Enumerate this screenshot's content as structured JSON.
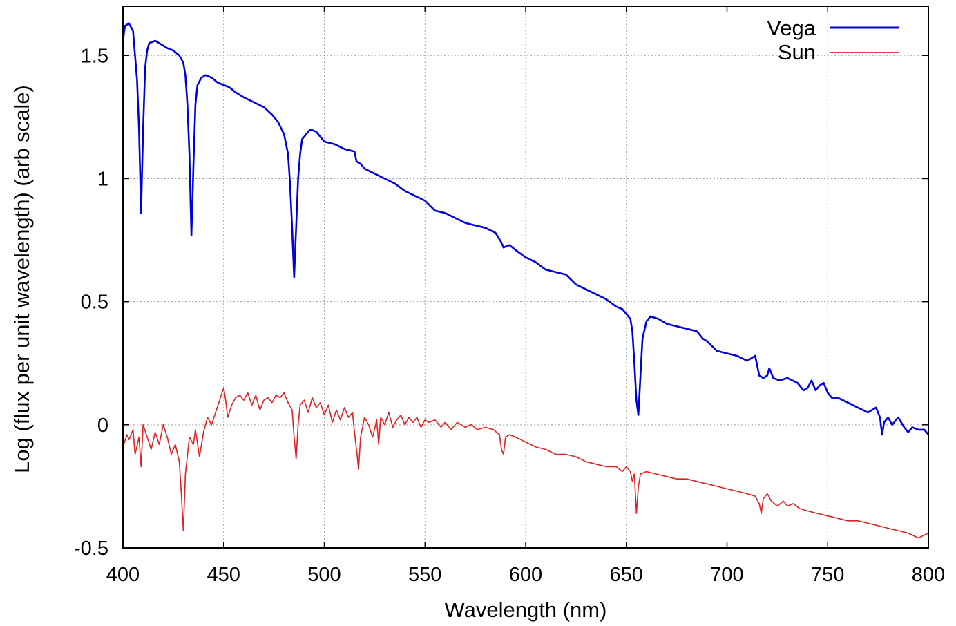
{
  "chart_data": {
    "type": "line",
    "title": "",
    "xlabel": "Wavelength (nm)",
    "ylabel": "Log (flux per unit wavelength) (arb scale)",
    "xlim": [
      400,
      800
    ],
    "ylim": [
      -0.5,
      1.7
    ],
    "xticks": [
      400,
      450,
      500,
      550,
      600,
      650,
      700,
      750,
      800
    ],
    "yticks": [
      -0.5,
      0,
      0.5,
      1,
      1.5
    ],
    "ytick_labels": [
      "-0.5",
      "0",
      "0.5",
      "1",
      "1.5"
    ],
    "grid": true,
    "legend_position": "top-right",
    "series": [
      {
        "name": "Vega",
        "color": "#0000dd",
        "points": [
          [
            400,
            1.56
          ],
          [
            401,
            1.62
          ],
          [
            403,
            1.63
          ],
          [
            405,
            1.6
          ],
          [
            406,
            1.5
          ],
          [
            407,
            1.4
          ],
          [
            408,
            1.2
          ],
          [
            409,
            0.86
          ],
          [
            410,
            1.2
          ],
          [
            411,
            1.45
          ],
          [
            412,
            1.52
          ],
          [
            413,
            1.55
          ],
          [
            416,
            1.56
          ],
          [
            418,
            1.55
          ],
          [
            420,
            1.54
          ],
          [
            422,
            1.53
          ],
          [
            425,
            1.52
          ],
          [
            428,
            1.5
          ],
          [
            430,
            1.47
          ],
          [
            431,
            1.42
          ],
          [
            432,
            1.3
          ],
          [
            433,
            1.1
          ],
          [
            434,
            0.77
          ],
          [
            435,
            1.05
          ],
          [
            436,
            1.3
          ],
          [
            437,
            1.38
          ],
          [
            439,
            1.41
          ],
          [
            441,
            1.42
          ],
          [
            444,
            1.41
          ],
          [
            447,
            1.39
          ],
          [
            450,
            1.38
          ],
          [
            453,
            1.37
          ],
          [
            456,
            1.35
          ],
          [
            460,
            1.33
          ],
          [
            465,
            1.31
          ],
          [
            470,
            1.29
          ],
          [
            474,
            1.26
          ],
          [
            477,
            1.23
          ],
          [
            480,
            1.18
          ],
          [
            482,
            1.1
          ],
          [
            483,
            0.98
          ],
          [
            484,
            0.8
          ],
          [
            485,
            0.6
          ],
          [
            486,
            0.8
          ],
          [
            487,
            1.0
          ],
          [
            488,
            1.1
          ],
          [
            489,
            1.16
          ],
          [
            491,
            1.18
          ],
          [
            493,
            1.2
          ],
          [
            496,
            1.19
          ],
          [
            500,
            1.15
          ],
          [
            505,
            1.14
          ],
          [
            510,
            1.12
          ],
          [
            515,
            1.11
          ],
          [
            516,
            1.07
          ],
          [
            518,
            1.06
          ],
          [
            520,
            1.04
          ],
          [
            525,
            1.02
          ],
          [
            530,
            1.0
          ],
          [
            535,
            0.98
          ],
          [
            540,
            0.95
          ],
          [
            545,
            0.93
          ],
          [
            550,
            0.91
          ],
          [
            555,
            0.87
          ],
          [
            560,
            0.86
          ],
          [
            565,
            0.84
          ],
          [
            570,
            0.82
          ],
          [
            575,
            0.81
          ],
          [
            580,
            0.8
          ],
          [
            585,
            0.78
          ],
          [
            588,
            0.74
          ],
          [
            589,
            0.72
          ],
          [
            592,
            0.73
          ],
          [
            595,
            0.71
          ],
          [
            600,
            0.68
          ],
          [
            605,
            0.66
          ],
          [
            610,
            0.63
          ],
          [
            615,
            0.62
          ],
          [
            620,
            0.61
          ],
          [
            625,
            0.57
          ],
          [
            630,
            0.55
          ],
          [
            635,
            0.53
          ],
          [
            640,
            0.51
          ],
          [
            645,
            0.48
          ],
          [
            648,
            0.47
          ],
          [
            650,
            0.45
          ],
          [
            652,
            0.43
          ],
          [
            653,
            0.38
          ],
          [
            654,
            0.25
          ],
          [
            655,
            0.1
          ],
          [
            656,
            0.04
          ],
          [
            657,
            0.2
          ],
          [
            658,
            0.35
          ],
          [
            660,
            0.42
          ],
          [
            662,
            0.44
          ],
          [
            666,
            0.43
          ],
          [
            670,
            0.41
          ],
          [
            675,
            0.4
          ],
          [
            680,
            0.39
          ],
          [
            685,
            0.38
          ],
          [
            688,
            0.35
          ],
          [
            690,
            0.34
          ],
          [
            695,
            0.3
          ],
          [
            700,
            0.29
          ],
          [
            705,
            0.28
          ],
          [
            710,
            0.26
          ],
          [
            714,
            0.28
          ],
          [
            716,
            0.2
          ],
          [
            718,
            0.19
          ],
          [
            720,
            0.2
          ],
          [
            721,
            0.23
          ],
          [
            723,
            0.19
          ],
          [
            726,
            0.18
          ],
          [
            730,
            0.19
          ],
          [
            735,
            0.17
          ],
          [
            738,
            0.14
          ],
          [
            740,
            0.15
          ],
          [
            742,
            0.18
          ],
          [
            744,
            0.14
          ],
          [
            746,
            0.16
          ],
          [
            748,
            0.17
          ],
          [
            750,
            0.13
          ],
          [
            752,
            0.11
          ],
          [
            755,
            0.11
          ],
          [
            760,
            0.09
          ],
          [
            765,
            0.07
          ],
          [
            770,
            0.05
          ],
          [
            774,
            0.07
          ],
          [
            776,
            0.03
          ],
          [
            777,
            -0.04
          ],
          [
            778,
            0.01
          ],
          [
            780,
            0.03
          ],
          [
            782,
            0.0
          ],
          [
            785,
            0.03
          ],
          [
            788,
            -0.01
          ],
          [
            790,
            -0.03
          ],
          [
            792,
            -0.01
          ],
          [
            795,
            -0.02
          ],
          [
            798,
            -0.02
          ],
          [
            800,
            -0.04
          ]
        ]
      },
      {
        "name": "Sun",
        "color": "#dd2222",
        "points": [
          [
            400,
            -0.09
          ],
          [
            402,
            -0.04
          ],
          [
            403,
            -0.06
          ],
          [
            405,
            -0.02
          ],
          [
            406,
            -0.12
          ],
          [
            408,
            -0.05
          ],
          [
            409,
            -0.17
          ],
          [
            410,
            0.0
          ],
          [
            412,
            -0.05
          ],
          [
            414,
            -0.1
          ],
          [
            416,
            -0.03
          ],
          [
            418,
            -0.08
          ],
          [
            420,
            0.0
          ],
          [
            422,
            -0.05
          ],
          [
            424,
            -0.12
          ],
          [
            426,
            -0.08
          ],
          [
            428,
            -0.15
          ],
          [
            429,
            -0.28
          ],
          [
            430,
            -0.43
          ],
          [
            431,
            -0.2
          ],
          [
            433,
            -0.05
          ],
          [
            435,
            -0.08
          ],
          [
            436,
            -0.02
          ],
          [
            438,
            -0.13
          ],
          [
            440,
            -0.03
          ],
          [
            442,
            0.03
          ],
          [
            444,
            0.0
          ],
          [
            446,
            0.05
          ],
          [
            448,
            0.1
          ],
          [
            450,
            0.15
          ],
          [
            451,
            0.1
          ],
          [
            452,
            0.03
          ],
          [
            454,
            0.08
          ],
          [
            456,
            0.11
          ],
          [
            458,
            0.12
          ],
          [
            460,
            0.1
          ],
          [
            462,
            0.13
          ],
          [
            464,
            0.08
          ],
          [
            466,
            0.12
          ],
          [
            468,
            0.06
          ],
          [
            470,
            0.1
          ],
          [
            472,
            0.11
          ],
          [
            474,
            0.09
          ],
          [
            476,
            0.12
          ],
          [
            478,
            0.11
          ],
          [
            480,
            0.13
          ],
          [
            482,
            0.09
          ],
          [
            484,
            0.06
          ],
          [
            485,
            -0.05
          ],
          [
            486,
            -0.14
          ],
          [
            487,
            0.0
          ],
          [
            488,
            0.08
          ],
          [
            490,
            0.1
          ],
          [
            492,
            0.05
          ],
          [
            494,
            0.11
          ],
          [
            496,
            0.07
          ],
          [
            498,
            0.09
          ],
          [
            500,
            0.04
          ],
          [
            502,
            0.08
          ],
          [
            504,
            0.01
          ],
          [
            506,
            0.06
          ],
          [
            508,
            0.02
          ],
          [
            510,
            0.07
          ],
          [
            512,
            0.03
          ],
          [
            514,
            0.05
          ],
          [
            515,
            -0.03
          ],
          [
            516,
            -0.1
          ],
          [
            517,
            -0.18
          ],
          [
            518,
            -0.05
          ],
          [
            520,
            0.03
          ],
          [
            522,
            0.0
          ],
          [
            524,
            -0.05
          ],
          [
            526,
            0.02
          ],
          [
            527,
            -0.08
          ],
          [
            528,
            0.03
          ],
          [
            530,
            0.0
          ],
          [
            532,
            0.05
          ],
          [
            534,
            -0.01
          ],
          [
            536,
            0.02
          ],
          [
            538,
            0.04
          ],
          [
            540,
            0.0
          ],
          [
            542,
            0.03
          ],
          [
            544,
            0.01
          ],
          [
            546,
            0.03
          ],
          [
            548,
            -0.01
          ],
          [
            550,
            0.02
          ],
          [
            552,
            0.01
          ],
          [
            555,
            0.02
          ],
          [
            558,
            -0.01
          ],
          [
            560,
            0.01
          ],
          [
            563,
            -0.02
          ],
          [
            566,
            0.01
          ],
          [
            570,
            -0.01
          ],
          [
            573,
            0.0
          ],
          [
            576,
            -0.02
          ],
          [
            580,
            -0.01
          ],
          [
            584,
            -0.02
          ],
          [
            587,
            -0.04
          ],
          [
            588,
            -0.1
          ],
          [
            589,
            -0.12
          ],
          [
            590,
            -0.05
          ],
          [
            592,
            -0.04
          ],
          [
            595,
            -0.05
          ],
          [
            600,
            -0.07
          ],
          [
            605,
            -0.09
          ],
          [
            610,
            -0.1
          ],
          [
            615,
            -0.12
          ],
          [
            620,
            -0.12
          ],
          [
            625,
            -0.13
          ],
          [
            630,
            -0.15
          ],
          [
            635,
            -0.16
          ],
          [
            640,
            -0.17
          ],
          [
            645,
            -0.17
          ],
          [
            648,
            -0.19
          ],
          [
            650,
            -0.17
          ],
          [
            652,
            -0.19
          ],
          [
            653,
            -0.23
          ],
          [
            654,
            -0.2
          ],
          [
            655,
            -0.36
          ],
          [
            656,
            -0.25
          ],
          [
            657,
            -0.2
          ],
          [
            660,
            -0.19
          ],
          [
            665,
            -0.2
          ],
          [
            670,
            -0.21
          ],
          [
            675,
            -0.22
          ],
          [
            680,
            -0.22
          ],
          [
            685,
            -0.23
          ],
          [
            690,
            -0.24
          ],
          [
            695,
            -0.25
          ],
          [
            700,
            -0.26
          ],
          [
            705,
            -0.27
          ],
          [
            710,
            -0.28
          ],
          [
            714,
            -0.29
          ],
          [
            716,
            -0.32
          ],
          [
            717,
            -0.36
          ],
          [
            718,
            -0.3
          ],
          [
            720,
            -0.28
          ],
          [
            722,
            -0.31
          ],
          [
            725,
            -0.33
          ],
          [
            728,
            -0.31
          ],
          [
            730,
            -0.33
          ],
          [
            733,
            -0.32
          ],
          [
            736,
            -0.34
          ],
          [
            740,
            -0.35
          ],
          [
            745,
            -0.36
          ],
          [
            750,
            -0.37
          ],
          [
            755,
            -0.38
          ],
          [
            760,
            -0.39
          ],
          [
            765,
            -0.39
          ],
          [
            770,
            -0.4
          ],
          [
            775,
            -0.41
          ],
          [
            780,
            -0.42
          ],
          [
            785,
            -0.43
          ],
          [
            790,
            -0.44
          ],
          [
            795,
            -0.46
          ],
          [
            800,
            -0.44
          ]
        ]
      }
    ]
  }
}
